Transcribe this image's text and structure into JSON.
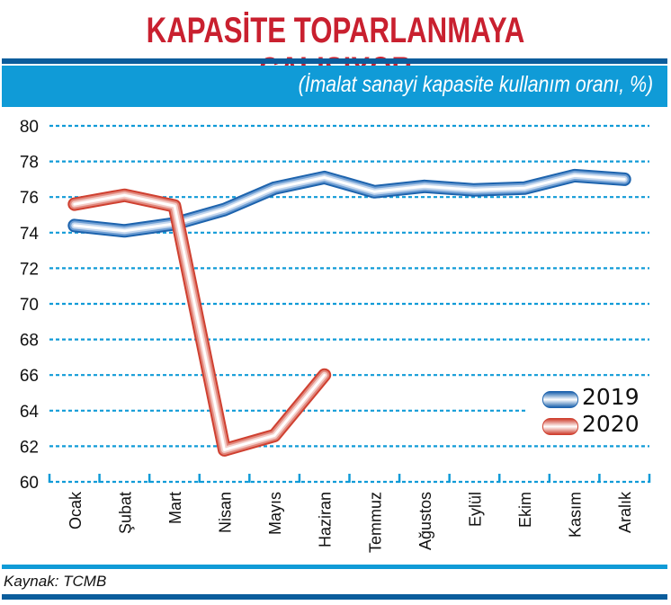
{
  "header": {
    "title": "KAPASİTE TOPARLANMAYA ÇALIŞIYOR",
    "subtitle": "(İmalat sanayi kapasite kullanım oranı, %)"
  },
  "legend": {
    "items": [
      {
        "label": "2019",
        "color": "#1d63ad"
      },
      {
        "label": "2020",
        "color": "#cf4030"
      }
    ]
  },
  "footer": {
    "source": "Kaynak: TCMB"
  },
  "colors": {
    "title": "#c9202f",
    "band": "#109bd7",
    "dark_bar": "#0b5d9c",
    "grid": "#109bd7",
    "series_2019": "#1d63ad",
    "series_2020": "#cf4030"
  },
  "chart_data": {
    "type": "line",
    "title": "KAPASİTE TOPARLANMAYA ÇALIŞIYOR",
    "subtitle": "(İmalat sanayi kapasite kullanım oranı, %)",
    "xlabel": "",
    "ylabel": "",
    "ylim": [
      60,
      80
    ],
    "yticks": [
      60,
      62,
      64,
      66,
      68,
      70,
      72,
      74,
      76,
      78,
      80
    ],
    "categories": [
      "Ocak",
      "Şubat",
      "Mart",
      "Nisan",
      "Mayıs",
      "Haziran",
      "Temmuz",
      "Ağustos",
      "Eylül",
      "Ekim",
      "Kasım",
      "Aralık"
    ],
    "series": [
      {
        "name": "2019",
        "values": [
          74.4,
          74.1,
          74.5,
          75.3,
          76.5,
          77.1,
          76.3,
          76.6,
          76.4,
          76.5,
          77.2,
          77.0
        ]
      },
      {
        "name": "2020",
        "values": [
          75.6,
          76.1,
          75.5,
          61.8,
          62.6,
          66.0,
          null,
          null,
          null,
          null,
          null,
          null
        ]
      }
    ],
    "grid": true,
    "grid_style": "dotted horizontal",
    "legend_position": "lower right",
    "source": "Kaynak: TCMB"
  }
}
